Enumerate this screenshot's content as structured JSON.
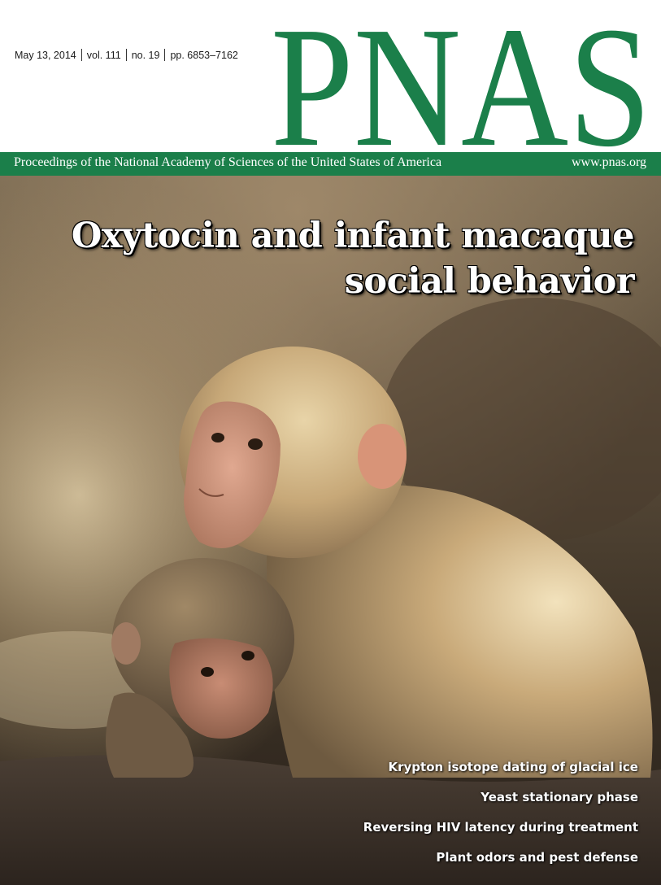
{
  "header": {
    "date": "May 13, 2014",
    "volume": "vol. 111",
    "number": "no. 19",
    "pages": "pp. 6853–7162",
    "logo_text": "PNAS"
  },
  "band": {
    "journal_full_name": "Proceedings of the National Academy of Sciences of the United States of America",
    "url": "www.pnas.org"
  },
  "cover_story": {
    "title_line1": "Oxytocin and infant macaque",
    "title_line2": "social behavior"
  },
  "teasers": [
    "Krypton isotope dating of glacial ice",
    "Yeast stationary phase",
    "Reversing HIV latency during treatment",
    "Plant odors and pest defense"
  ],
  "colors": {
    "brand_green": "#1b7f4a",
    "band_text": "#ffffff"
  }
}
